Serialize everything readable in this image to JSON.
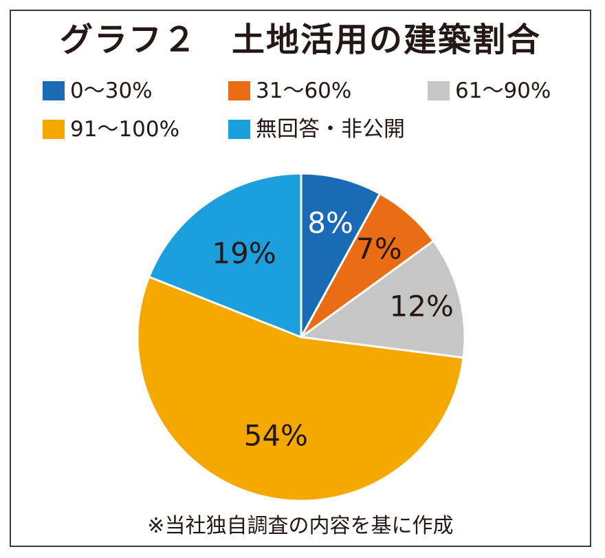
{
  "chart_data": {
    "type": "pie",
    "title": "グラフ２　土地活用の建築割合",
    "legend_position": "top",
    "categories": [
      "0～30%",
      "31～60%",
      "61～90%",
      "91～100%",
      "無回答・非公開"
    ],
    "values": [
      8,
      7,
      12,
      54,
      19
    ],
    "data_labels": [
      "8%",
      "7%",
      "12%",
      "54%",
      "19%"
    ],
    "colors": [
      "#1a6bb5",
      "#ea6c14",
      "#c6c6c6",
      "#f4a800",
      "#1b9fdd"
    ],
    "label_colors": [
      "#ffffff",
      "#231815",
      "#231815",
      "#231815",
      "#231815"
    ],
    "start_angle_deg": 0,
    "direction": "clockwise"
  },
  "note": "※当社独自調査の内容を基に作成"
}
